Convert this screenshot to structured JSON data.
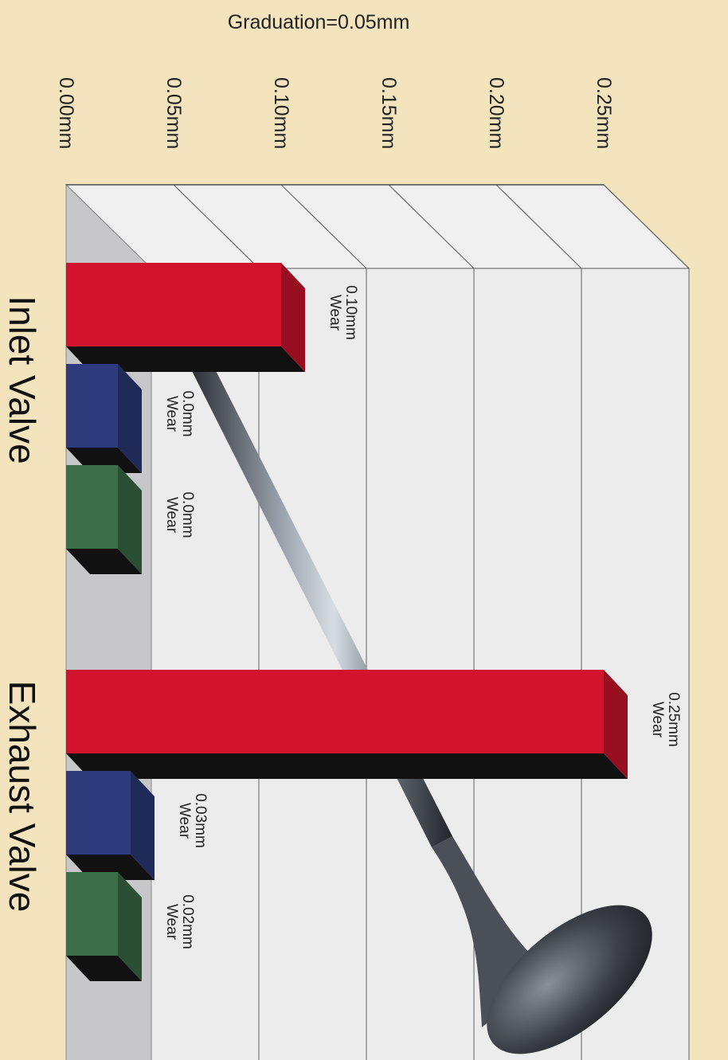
{
  "chart_data": {
    "type": "bar",
    "title": "Graduation=0.05mm",
    "groups": [
      "Inlet Valve",
      "Exhaust Valve"
    ],
    "ylim": [
      0,
      0.25
    ],
    "tick_labels": [
      "0.00mm",
      "0.05mm",
      "0.10mm",
      "0.15mm",
      "0.20mm",
      "0.25mm"
    ],
    "tick_values": [
      0,
      0.05,
      0.1,
      0.15,
      0.2,
      0.25
    ],
    "series": [
      {
        "color": "#d2132d",
        "values": [
          0.1,
          0.25
        ],
        "labels": [
          "0.10mm\nWear",
          "0.25mm\nWear"
        ]
      },
      {
        "color": "#2d3a7c",
        "values": [
          0.0,
          0.03
        ],
        "labels": [
          "0.0mm\nWear",
          "0.03mm\nWear"
        ]
      },
      {
        "color": "#3c6e4a",
        "values": [
          0.0,
          0.02
        ],
        "labels": [
          "0.0mm\nWear",
          "0.02mm\nWear"
        ]
      }
    ],
    "orientation": "horizontal",
    "grid": true,
    "legend": "none"
  },
  "colors": {
    "background": "#f3e4bd",
    "plot_back": "#ececec",
    "side_wall": "#c7c7c9"
  }
}
